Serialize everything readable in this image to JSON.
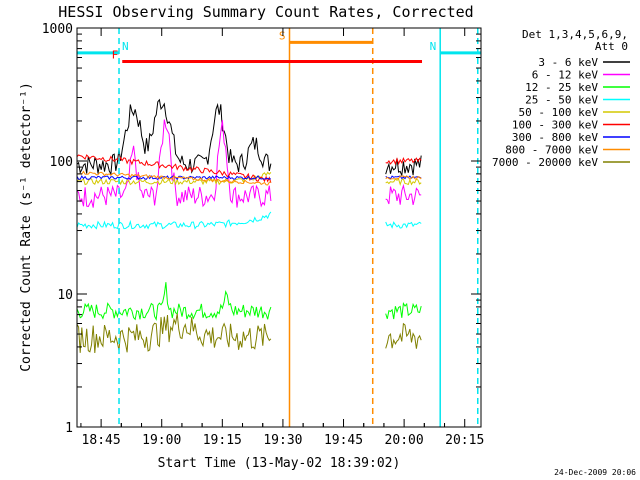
{
  "chart_data": {
    "type": "line",
    "title": "HESSI Observing Summary Count Rates, Corrected",
    "xlabel": "Start Time (13-May-02 18:39:02)",
    "ylabel": "Corrected Count Rate (s⁻¹ detector⁻¹)",
    "yscale": "log",
    "xlim": [
      0,
      100
    ],
    "ylim": [
      1,
      1000
    ],
    "x_unit": "minutes since 18:39:02",
    "x_ticks": [
      {
        "t": 5.97,
        "label": "18:45"
      },
      {
        "t": 20.97,
        "label": "19:00"
      },
      {
        "t": 35.97,
        "label": "19:15"
      },
      {
        "t": 50.97,
        "label": "19:30"
      },
      {
        "t": 65.97,
        "label": "19:45"
      },
      {
        "t": 80.97,
        "label": "20:00"
      },
      {
        "t": 95.97,
        "label": "20:15"
      }
    ],
    "y_ticks": [
      {
        "v": 1,
        "label": "1"
      },
      {
        "v": 10,
        "label": "10"
      },
      {
        "v": 100,
        "label": "100"
      },
      {
        "v": 1000,
        "label": "1000"
      }
    ],
    "legend_header": [
      "Det 1,3,4,5,6,9,",
      "Att 0"
    ],
    "legend_position": "right",
    "series": [
      {
        "name": "3 - 6 keV",
        "color": "#000000"
      },
      {
        "name": "6 - 12 keV",
        "color": "#ff00ff"
      },
      {
        "name": "12 - 25 keV",
        "color": "#00ff00"
      },
      {
        "name": "25 - 50 keV",
        "color": "#00ffff"
      },
      {
        "name": "50 - 100 keV",
        "color": "#d4c800"
      },
      {
        "name": "100 - 300 keV",
        "color": "#ff0000"
      },
      {
        "name": "300 - 800 keV",
        "color": "#0000ff"
      },
      {
        "name": "800 - 7000 keV",
        "color": "#ff8c00"
      },
      {
        "name": "7000 - 20000 keV",
        "color": "#808000"
      }
    ],
    "data_gaps": [
      [
        48.0,
        76.3
      ],
      [
        85.4,
        100.0
      ]
    ],
    "flags": [
      {
        "label": "N",
        "color": "#00e5ee",
        "start": 0,
        "end": 10.4,
        "value": 650
      },
      {
        "label": "N",
        "color": "#00e5ee",
        "start": 89.9,
        "end": 100,
        "value": 650
      },
      {
        "label": "F",
        "color": "#ff0000",
        "start": 11.2,
        "end": 85.4,
        "value": 560
      },
      {
        "label": "S",
        "color": "#ff8c00",
        "start": 52.6,
        "end": 73.2,
        "value": 780
      }
    ],
    "vertical_lines": [
      {
        "t": 10.4,
        "color": "#00e5ee",
        "style": "dashed"
      },
      {
        "t": 99.2,
        "color": "#00e5ee",
        "style": "dashed"
      },
      {
        "t": 52.6,
        "color": "#ff8c00",
        "style": "solid"
      },
      {
        "t": 73.2,
        "color": "#ff8c00",
        "style": "dashed"
      },
      {
        "t": 89.9,
        "color": "#00e5ee",
        "style": "solid"
      }
    ],
    "timestamp": "24-Dec-2009 20:06"
  }
}
